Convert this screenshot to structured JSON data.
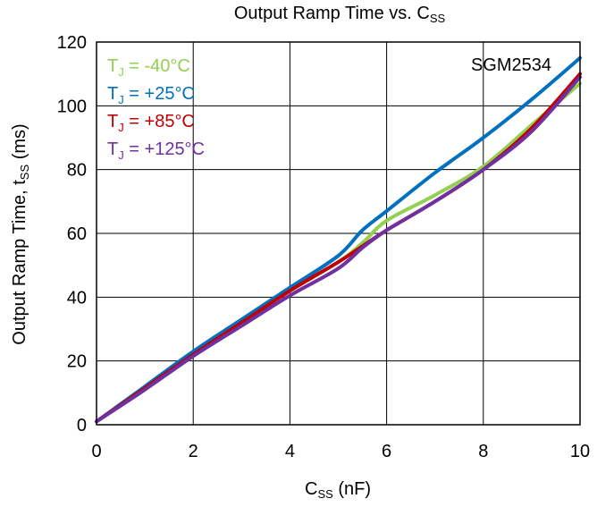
{
  "chart_data": {
    "type": "line",
    "title": "Output Ramp Time vs. C",
    "title_sub": "SS",
    "xlabel": "C",
    "xlabel_sub": "SS",
    "xlabel_unit": " (nF)",
    "ylabel": "Output Ramp Time, t",
    "ylabel_sub": "SS",
    "ylabel_unit": " (ms)",
    "xlim": [
      0,
      10
    ],
    "ylim": [
      0,
      120
    ],
    "xticks": [
      0,
      2,
      4,
      6,
      8,
      10
    ],
    "yticks": [
      0,
      20,
      40,
      60,
      80,
      100,
      120
    ],
    "grid": true,
    "annotation": "SGM2534",
    "legend_position": "top-left",
    "series": [
      {
        "name": "T",
        "sub": "J",
        "suffix": " = -40°C",
        "color": "#92d050",
        "x": [
          0,
          1,
          2,
          3,
          4,
          5,
          5.5,
          6,
          7,
          8,
          9,
          10
        ],
        "y": [
          1,
          11.5,
          22,
          32.5,
          42,
          51,
          57,
          64,
          72,
          81,
          94,
          107
        ]
      },
      {
        "name": "T",
        "sub": "J",
        "suffix": " = +25°C",
        "color": "#0070c0",
        "x": [
          0,
          1,
          2,
          3,
          4,
          5,
          5.5,
          6,
          7,
          8,
          9,
          10
        ],
        "y": [
          1,
          12,
          23,
          33,
          43,
          53,
          61,
          67,
          79,
          90,
          102,
          115
        ]
      },
      {
        "name": "T",
        "sub": "J",
        "suffix": " = +85°C",
        "color": "#c00000",
        "x": [
          0,
          1,
          2,
          3,
          4,
          5,
          5.5,
          6,
          7,
          8,
          9,
          10
        ],
        "y": [
          1,
          11.5,
          22,
          32,
          42,
          51,
          56,
          61,
          70,
          80,
          93,
          110
        ]
      },
      {
        "name": "T",
        "sub": "J",
        "suffix": " = +125°C",
        "color": "#7030a0",
        "x": [
          0,
          1,
          2,
          3,
          4,
          5,
          5.5,
          6,
          7,
          8,
          9,
          10
        ],
        "y": [
          1,
          11,
          21.5,
          31,
          40.5,
          49,
          55.5,
          61,
          70,
          80,
          92,
          109
        ]
      }
    ]
  }
}
